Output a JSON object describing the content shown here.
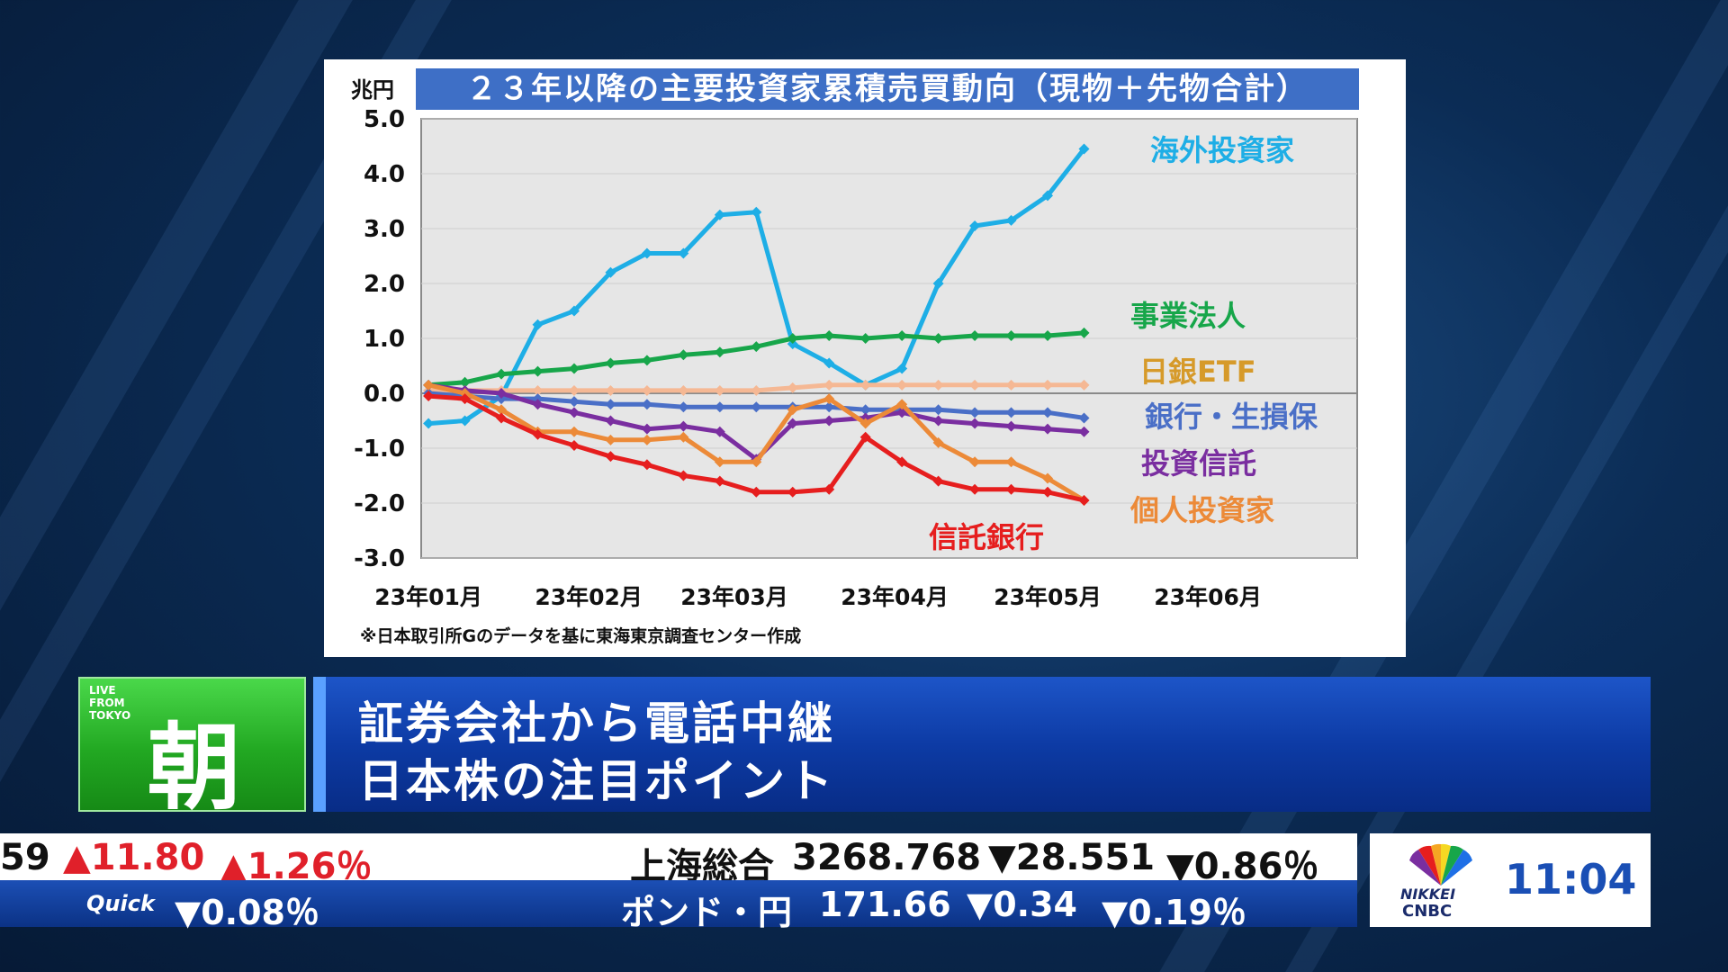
{
  "chart": {
    "title": "２３年以降の主要投資家累積売買動向（現物＋先物合計）",
    "unit": "兆円",
    "source_note": "※日本取引所Gのデータを基に東海東京調査センター作成"
  },
  "chart_data": {
    "type": "line",
    "title": "２３年以降の主要投資家累積売買動向（現物＋先物合計）",
    "ylabel": "兆円",
    "ylim": [
      -3.0,
      5.0
    ],
    "yticks": [
      "5.0",
      "4.0",
      "3.0",
      "2.0",
      "1.0",
      "0.0",
      "-1.0",
      "-2.0",
      "-3.0"
    ],
    "ytick_values": [
      5,
      4,
      3,
      2,
      1,
      0,
      -1,
      -2,
      -3
    ],
    "xticks": [
      "23年01月",
      "23年02月",
      "23年03月",
      "23年04月",
      "23年05月",
      "23年06月"
    ],
    "xtick_positions": [
      0,
      4.4,
      8.4,
      12.8,
      17,
      21.4
    ],
    "grid": true,
    "x": [
      0,
      1,
      2,
      3,
      4,
      5,
      6,
      7,
      8,
      9,
      10,
      11,
      12,
      13,
      14,
      15,
      16,
      17,
      18
    ],
    "series": [
      {
        "name": "海外投資家",
        "color": "#1eaee6",
        "values": [
          -0.55,
          -0.5,
          -0.05,
          1.25,
          1.5,
          2.2,
          2.55,
          2.55,
          3.25,
          3.3,
          0.9,
          0.55,
          0.15,
          0.45,
          2.0,
          3.05,
          3.15,
          3.6,
          4.45
        ]
      },
      {
        "name": "事業法人",
        "color": "#17a64a",
        "values": [
          0.15,
          0.2,
          0.35,
          0.4,
          0.45,
          0.55,
          0.6,
          0.7,
          0.75,
          0.85,
          1.0,
          1.05,
          1.0,
          1.05,
          1.0,
          1.05,
          1.05,
          1.05,
          1.1
        ]
      },
      {
        "name": "日銀ETF",
        "color": "#f5b894",
        "values": [
          0.05,
          0.05,
          0.05,
          0.05,
          0.05,
          0.05,
          0.05,
          0.05,
          0.05,
          0.05,
          0.1,
          0.15,
          0.15,
          0.15,
          0.15,
          0.15,
          0.15,
          0.15,
          0.15
        ]
      },
      {
        "name": "銀行・生損保",
        "color": "#4a6fc7",
        "values": [
          0.0,
          -0.05,
          -0.1,
          -0.1,
          -0.15,
          -0.2,
          -0.2,
          -0.25,
          -0.25,
          -0.25,
          -0.25,
          -0.25,
          -0.3,
          -0.3,
          -0.3,
          -0.35,
          -0.35,
          -0.35,
          -0.45
        ]
      },
      {
        "name": "投資信託",
        "color": "#7a2ea0",
        "values": [
          0.15,
          0.05,
          0.0,
          -0.2,
          -0.35,
          -0.5,
          -0.65,
          -0.6,
          -0.7,
          -1.2,
          -0.55,
          -0.5,
          -0.45,
          -0.35,
          -0.5,
          -0.55,
          -0.6,
          -0.65,
          -0.7
        ]
      },
      {
        "name": "個人投資家",
        "color": "#ec8a38",
        "values": [
          0.15,
          0.0,
          -0.3,
          -0.7,
          -0.7,
          -0.85,
          -0.85,
          -0.8,
          -1.25,
          -1.25,
          -0.3,
          -0.1,
          -0.55,
          -0.2,
          -0.9,
          -1.25,
          -1.25,
          -1.55,
          -1.95
        ]
      },
      {
        "name": "信託銀行",
        "color": "#e61e1e",
        "values": [
          -0.05,
          -0.1,
          -0.45,
          -0.75,
          -0.95,
          -1.15,
          -1.3,
          -1.5,
          -1.6,
          -1.8,
          -1.8,
          -1.75,
          -0.8,
          -1.25,
          -1.6,
          -1.75,
          -1.75,
          -1.8,
          -1.95
        ]
      }
    ]
  },
  "series_labels": [
    {
      "text": "海外投資家",
      "color": "#1eaee6"
    },
    {
      "text": "事業法人",
      "color": "#17a64a"
    },
    {
      "text": "日銀ETF",
      "color": "#d69a2a"
    },
    {
      "text": "銀行・生損保",
      "color": "#4a6fc7"
    },
    {
      "text": "投資信託",
      "color": "#7a2ea0"
    },
    {
      "text": "個人投資家",
      "color": "#ec8a38"
    },
    {
      "text": "信託銀行",
      "color": "#e61e1e"
    }
  ],
  "program": {
    "live_text": "LIVE FROM TOKYO",
    "segment_char": "朝",
    "headline_line1": "証券会社から電話中継",
    "headline_line2": "日本株の注目ポイント"
  },
  "ticker": {
    "top_left_value": "59",
    "top_left_change": "▲11.80",
    "top_left_pct": "▲1.26％",
    "shanghai_name": "上海総合",
    "shanghai_value": "3268.768",
    "shanghai_change": "▼28.551",
    "shanghai_pct": "▼0.86％",
    "quick_label": "Quick",
    "quick_pct": "▼0.08％",
    "gbp_name": "ポンド・円",
    "gbp_value": "171.66",
    "gbp_change": "▼0.34",
    "gbp_pct": "▼0.19％"
  },
  "brand": {
    "nikkei": "NIKKEI",
    "cnbc": "CNBC",
    "time": "11:04"
  }
}
